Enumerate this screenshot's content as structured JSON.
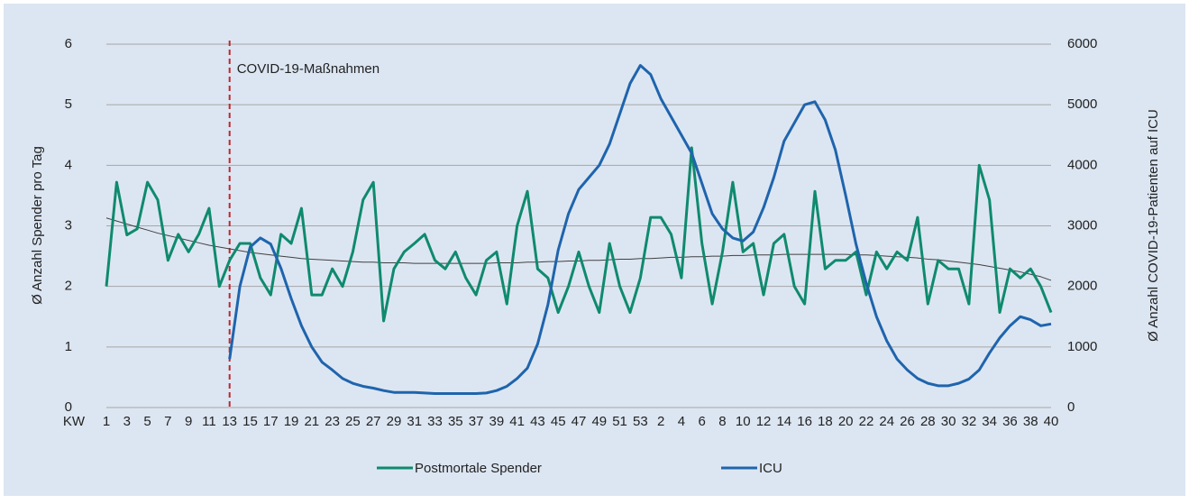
{
  "chart_data": {
    "type": "line",
    "categories": [
      "1",
      null,
      "3",
      null,
      "5",
      null,
      "7",
      null,
      "9",
      null,
      "11",
      null,
      "13",
      null,
      "15",
      null,
      "17",
      null,
      "19",
      null,
      "21",
      null,
      "23",
      null,
      "25",
      null,
      "27",
      null,
      "29",
      null,
      "31",
      null,
      "33",
      null,
      "35",
      null,
      "37",
      null,
      "39",
      null,
      "41",
      null,
      "43",
      null,
      "45",
      null,
      "47",
      null,
      "49",
      null,
      "51",
      null,
      "53",
      null,
      "2",
      null,
      "4",
      null,
      "6",
      null,
      "8",
      null,
      "10",
      null,
      "12",
      null,
      "14",
      null,
      "16",
      null,
      "18",
      null,
      "20",
      null,
      "22",
      null,
      "24",
      null,
      "26",
      null,
      "28",
      null,
      "30",
      null,
      "32",
      null,
      "34",
      null,
      "36",
      null,
      "38",
      null,
      "40"
    ],
    "x_label": "KW",
    "y_label": "Ø Anzahl Spender pro Tag",
    "y2_label": "Ø Anzahl COVID-19-Patienten auf ICU",
    "ylim": [
      0,
      6
    ],
    "yticks": [
      0,
      1,
      2,
      3,
      4,
      5,
      6
    ],
    "y2lim": [
      0,
      6000
    ],
    "y2ticks": [
      0,
      1000,
      2000,
      3000,
      4000,
      5000,
      6000
    ],
    "grid": true,
    "legend": "bottom",
    "series": [
      {
        "name": "Postmortale Spender",
        "color": "#0f8a6e",
        "axis": "y",
        "values": [
          2.0,
          3.72,
          2.85,
          2.95,
          3.72,
          3.43,
          2.43,
          2.86,
          2.57,
          2.86,
          3.29,
          2.0,
          2.43,
          2.71,
          2.71,
          2.14,
          1.86,
          2.86,
          2.71,
          3.29,
          1.86,
          1.86,
          2.29,
          2.0,
          2.57,
          3.43,
          3.72,
          1.43,
          2.29,
          2.57,
          2.71,
          2.86,
          2.43,
          2.29,
          2.57,
          2.14,
          1.86,
          2.43,
          2.57,
          1.71,
          3.0,
          3.57,
          2.29,
          2.14,
          1.57,
          2.0,
          2.57,
          2.0,
          1.57,
          2.71,
          2.0,
          1.57,
          2.14,
          3.14,
          3.14,
          2.86,
          2.14,
          4.29,
          2.71,
          1.71,
          2.57,
          3.72,
          2.57,
          2.71,
          1.86,
          2.71,
          2.86,
          2.0,
          1.71,
          3.57,
          2.29,
          2.43,
          2.43,
          2.57,
          1.86,
          2.57,
          2.29,
          2.57,
          2.43,
          3.14,
          1.71,
          2.43,
          2.29,
          2.29,
          1.71,
          4.0,
          3.43,
          1.57,
          2.29,
          2.14,
          2.29,
          2.0,
          1.57
        ]
      },
      {
        "name": "ICU",
        "color": "#1f64ad",
        "axis": "y2",
        "values": [
          null,
          null,
          null,
          null,
          null,
          null,
          null,
          null,
          null,
          null,
          null,
          null,
          800,
          2000,
          2650,
          2800,
          2700,
          2300,
          1800,
          1350,
          1000,
          750,
          620,
          480,
          400,
          350,
          320,
          280,
          250,
          250,
          250,
          240,
          230,
          230,
          230,
          230,
          230,
          240,
          280,
          350,
          480,
          650,
          1050,
          1700,
          2600,
          3200,
          3600,
          3800,
          4000,
          4350,
          4850,
          5350,
          5650,
          5500,
          5100,
          4800,
          4500,
          4200,
          3700,
          3200,
          2950,
          2800,
          2750,
          2900,
          3300,
          3800,
          4400,
          4700,
          5000,
          5050,
          4750,
          4250,
          3500,
          2700,
          2050,
          1500,
          1100,
          800,
          620,
          480,
          400,
          360,
          360,
          400,
          470,
          620,
          900,
          1150,
          1350,
          1500,
          1450,
          1350,
          1380
        ]
      }
    ],
    "trend": {
      "color": "#404040",
      "axis": "y",
      "values": [
        3.13,
        3.08,
        3.03,
        2.98,
        2.93,
        2.88,
        2.84,
        2.8,
        2.76,
        2.72,
        2.68,
        2.65,
        2.62,
        2.59,
        2.56,
        2.54,
        2.52,
        2.5,
        2.48,
        2.46,
        2.45,
        2.44,
        2.43,
        2.42,
        2.41,
        2.4,
        2.4,
        2.39,
        2.39,
        2.39,
        2.38,
        2.38,
        2.38,
        2.38,
        2.38,
        2.38,
        2.38,
        2.38,
        2.39,
        2.39,
        2.39,
        2.4,
        2.4,
        2.41,
        2.41,
        2.42,
        2.42,
        2.43,
        2.43,
        2.44,
        2.45,
        2.45,
        2.46,
        2.46,
        2.47,
        2.48,
        2.48,
        2.49,
        2.49,
        2.5,
        2.5,
        2.51,
        2.51,
        2.52,
        2.52,
        2.52,
        2.53,
        2.53,
        2.53,
        2.53,
        2.53,
        2.53,
        2.53,
        2.52,
        2.52,
        2.51,
        2.5,
        2.49,
        2.48,
        2.47,
        2.45,
        2.44,
        2.42,
        2.4,
        2.38,
        2.36,
        2.33,
        2.3,
        2.27,
        2.24,
        2.2,
        2.16,
        2.1
      ]
    },
    "marker_line": {
      "label": "COVID-19-Maßnahmen",
      "category_index": 12,
      "color": "#c0262d"
    }
  }
}
